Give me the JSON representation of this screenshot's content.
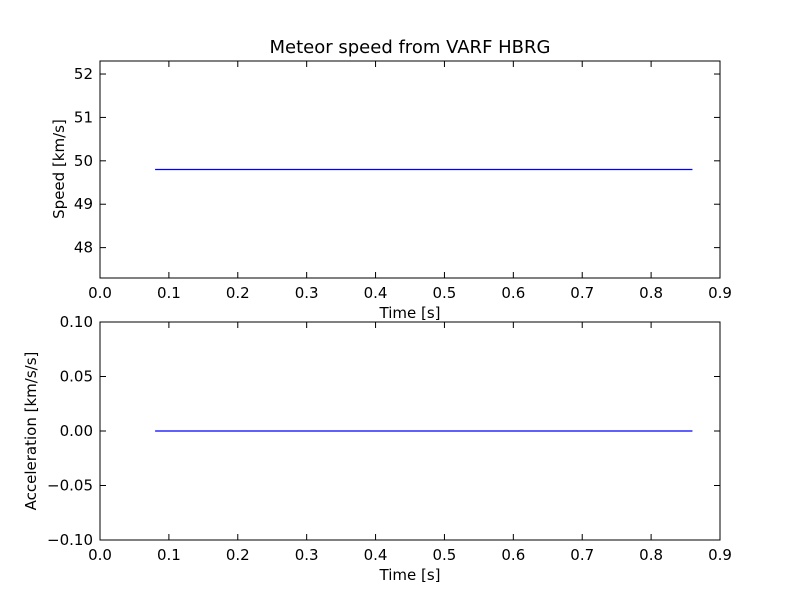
{
  "colors": {
    "line": "#0000ff",
    "axes": "#000000",
    "background": "#ffffff"
  },
  "chart_data": [
    {
      "type": "line",
      "title": "Meteor speed from  VARF HBRG",
      "xlabel": "Time [s]",
      "ylabel": "Speed [km/s]",
      "xlim": [
        0.0,
        0.9
      ],
      "ylim": [
        47.3,
        52.3
      ],
      "xticks": [
        "0.0",
        "0.1",
        "0.2",
        "0.3",
        "0.4",
        "0.5",
        "0.6",
        "0.7",
        "0.8",
        "0.9"
      ],
      "yticks": [
        "48",
        "49",
        "50",
        "51",
        "52"
      ],
      "grid": false,
      "series": [
        {
          "x": [
            0.08,
            0.86
          ],
          "y": [
            49.8,
            49.8
          ]
        }
      ]
    },
    {
      "type": "line",
      "title": "",
      "xlabel": "Time [s]",
      "ylabel": "Acceleration [km/s/s]",
      "xlim": [
        0.0,
        0.9
      ],
      "ylim": [
        -0.1,
        0.1
      ],
      "xticks": [
        "0.0",
        "0.1",
        "0.2",
        "0.3",
        "0.4",
        "0.5",
        "0.6",
        "0.7",
        "0.8",
        "0.9"
      ],
      "yticks": [
        "0.10",
        "0.05",
        "0.00",
        "−0.05",
        "−0.10"
      ],
      "grid": false,
      "series": [
        {
          "x": [
            0.08,
            0.86
          ],
          "y": [
            0.0,
            0.0
          ]
        }
      ]
    }
  ]
}
